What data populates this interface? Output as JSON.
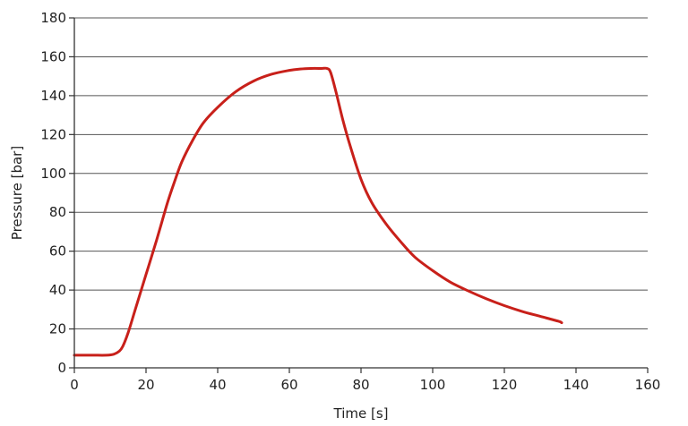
{
  "chart_data": {
    "type": "line",
    "title": "",
    "xlabel": "Time [s]",
    "ylabel": "Pressure [bar]",
    "xlim": [
      0,
      160
    ],
    "ylim": [
      0,
      180
    ],
    "x_ticks": [
      0,
      20,
      40,
      60,
      80,
      100,
      120,
      140,
      160
    ],
    "y_ticks": [
      0,
      20,
      40,
      60,
      80,
      100,
      120,
      140,
      160,
      180
    ],
    "grid": "horizontal",
    "legend": "none",
    "series": [
      {
        "color": "#c8201a",
        "points": [
          [
            0,
            6.5
          ],
          [
            5,
            6.5
          ],
          [
            9,
            6.5
          ],
          [
            11,
            7
          ],
          [
            12.5,
            8.5
          ],
          [
            13.5,
            11
          ],
          [
            15,
            18
          ],
          [
            17,
            30
          ],
          [
            20,
            48
          ],
          [
            23,
            66
          ],
          [
            26,
            85
          ],
          [
            28,
            96
          ],
          [
            30,
            106
          ],
          [
            33,
            117
          ],
          [
            36,
            126
          ],
          [
            40,
            134
          ],
          [
            45,
            142
          ],
          [
            50,
            147.5
          ],
          [
            55,
            151
          ],
          [
            60,
            153
          ],
          [
            63,
            153.7
          ],
          [
            66,
            154
          ],
          [
            69,
            154
          ],
          [
            70.5,
            154
          ],
          [
            71.5,
            152
          ],
          [
            73,
            142
          ],
          [
            75,
            127
          ],
          [
            77,
            114
          ],
          [
            80,
            97
          ],
          [
            83,
            85
          ],
          [
            87,
            74
          ],
          [
            91,
            65
          ],
          [
            95,
            57
          ],
          [
            100,
            50
          ],
          [
            105,
            44
          ],
          [
            110,
            39.5
          ],
          [
            115,
            35.5
          ],
          [
            120,
            32
          ],
          [
            125,
            29
          ],
          [
            130,
            26.5
          ],
          [
            135,
            24
          ],
          [
            136,
            23.2
          ]
        ]
      }
    ]
  }
}
